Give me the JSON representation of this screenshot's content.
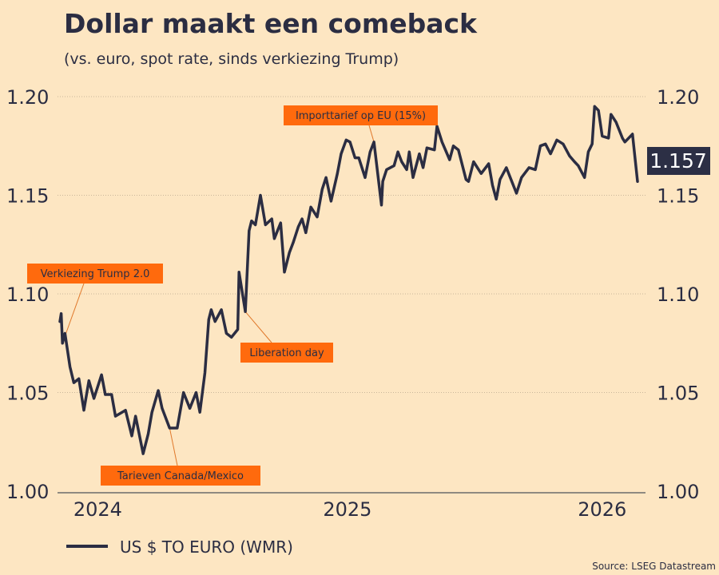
{
  "chart_data": {
    "type": "line",
    "title": "Dollar maakt een comeback",
    "subtitle": "(vs. euro, spot rate, sinds verkiezing Trump)",
    "source": "Source: LSEG Datastream",
    "ylim": [
      1.0,
      1.2
    ],
    "yticks": [
      "1.00",
      "1.05",
      "1.10",
      "1.15",
      "1.20"
    ],
    "xlim": [
      "2024-11-05",
      "2026-02-06"
    ],
    "xticks": [
      {
        "date": "2024-12-05",
        "label": "2024"
      },
      {
        "date": "2025-06-21",
        "label": "2025"
      },
      {
        "date": "2026-01-09",
        "label": "2026"
      }
    ],
    "grid": true,
    "legend_position": "bottom-left",
    "colors": {
      "background": "#fde6c2",
      "line": "#2b2d42",
      "annotation": "#ff6a0d",
      "last_value_box": "#2c2f45"
    },
    "last_value_label": "1.157",
    "series": [
      {
        "name": "US $ TO EURO (WMR)",
        "points": [
          [
            "2024-11-05",
            1.086
          ],
          [
            "2024-11-06",
            1.09
          ],
          [
            "2024-11-07",
            1.075
          ],
          [
            "2024-11-09",
            1.08
          ],
          [
            "2024-11-13",
            1.063
          ],
          [
            "2024-11-16",
            1.055
          ],
          [
            "2024-11-20",
            1.057
          ],
          [
            "2024-11-24",
            1.041
          ],
          [
            "2024-11-28",
            1.056
          ],
          [
            "2024-12-02",
            1.047
          ],
          [
            "2024-12-08",
            1.059
          ],
          [
            "2024-12-11",
            1.049
          ],
          [
            "2024-12-16",
            1.049
          ],
          [
            "2024-12-19",
            1.038
          ],
          [
            "2024-12-27",
            1.041
          ],
          [
            "2025-01-01",
            1.028
          ],
          [
            "2025-01-04",
            1.038
          ],
          [
            "2025-01-10",
            1.019
          ],
          [
            "2025-01-14",
            1.029
          ],
          [
            "2025-01-17",
            1.04
          ],
          [
            "2025-01-22",
            1.051
          ],
          [
            "2025-01-25",
            1.042
          ],
          [
            "2025-01-31",
            1.032
          ],
          [
            "2025-02-06",
            1.032
          ],
          [
            "2025-02-11",
            1.05
          ],
          [
            "2025-02-16",
            1.042
          ],
          [
            "2025-02-21",
            1.05
          ],
          [
            "2025-02-24",
            1.04
          ],
          [
            "2025-02-28",
            1.06
          ],
          [
            "2025-03-03",
            1.087
          ],
          [
            "2025-03-05",
            1.092
          ],
          [
            "2025-03-08",
            1.086
          ],
          [
            "2025-03-13",
            1.092
          ],
          [
            "2025-03-17",
            1.08
          ],
          [
            "2025-03-21",
            1.078
          ],
          [
            "2025-03-26",
            1.082
          ],
          [
            "2025-03-27",
            1.111
          ],
          [
            "2025-04-01",
            1.091
          ],
          [
            "2025-04-04",
            1.132
          ],
          [
            "2025-04-06",
            1.137
          ],
          [
            "2025-04-09",
            1.135
          ],
          [
            "2025-04-13",
            1.15
          ],
          [
            "2025-04-17",
            1.135
          ],
          [
            "2025-04-22",
            1.138
          ],
          [
            "2025-04-24",
            1.128
          ],
          [
            "2025-04-29",
            1.136
          ],
          [
            "2025-05-02",
            1.111
          ],
          [
            "2025-05-06",
            1.121
          ],
          [
            "2025-05-09",
            1.126
          ],
          [
            "2025-05-13",
            1.134
          ],
          [
            "2025-05-16",
            1.138
          ],
          [
            "2025-05-19",
            1.131
          ],
          [
            "2025-05-23",
            1.144
          ],
          [
            "2025-05-28",
            1.139
          ],
          [
            "2025-06-01",
            1.153
          ],
          [
            "2025-06-04",
            1.159
          ],
          [
            "2025-06-08",
            1.147
          ],
          [
            "2025-06-13",
            1.161
          ],
          [
            "2025-06-16",
            1.171
          ],
          [
            "2025-06-20",
            1.178
          ],
          [
            "2025-06-23",
            1.177
          ],
          [
            "2025-06-27",
            1.169
          ],
          [
            "2025-06-30",
            1.169
          ],
          [
            "2025-07-05",
            1.159
          ],
          [
            "2025-07-09",
            1.172
          ],
          [
            "2025-07-12",
            1.177
          ],
          [
            "2025-07-18",
            1.145
          ],
          [
            "2025-07-19",
            1.157
          ],
          [
            "2025-07-22",
            1.163
          ],
          [
            "2025-07-28",
            1.165
          ],
          [
            "2025-07-31",
            1.172
          ],
          [
            "2025-08-03",
            1.167
          ],
          [
            "2025-08-07",
            1.163
          ],
          [
            "2025-08-09",
            1.172
          ],
          [
            "2025-08-12",
            1.159
          ],
          [
            "2025-08-17",
            1.171
          ],
          [
            "2025-08-20",
            1.164
          ],
          [
            "2025-08-23",
            1.174
          ],
          [
            "2025-08-29",
            1.173
          ],
          [
            "2025-08-31",
            1.185
          ],
          [
            "2025-09-04",
            1.177
          ],
          [
            "2025-09-10",
            1.168
          ],
          [
            "2025-09-13",
            1.175
          ],
          [
            "2025-09-17",
            1.173
          ],
          [
            "2025-09-23",
            1.158
          ],
          [
            "2025-09-25",
            1.157
          ],
          [
            "2025-09-29",
            1.167
          ],
          [
            "2025-10-05",
            1.161
          ],
          [
            "2025-10-11",
            1.166
          ],
          [
            "2025-10-14",
            1.155
          ],
          [
            "2025-10-17",
            1.148
          ],
          [
            "2025-10-20",
            1.158
          ],
          [
            "2025-10-25",
            1.164
          ],
          [
            "2025-11-02",
            1.151
          ],
          [
            "2025-11-06",
            1.159
          ],
          [
            "2025-11-12",
            1.164
          ],
          [
            "2025-11-17",
            1.163
          ],
          [
            "2025-11-21",
            1.175
          ],
          [
            "2025-11-25",
            1.176
          ],
          [
            "2025-11-29",
            1.171
          ],
          [
            "2025-12-04",
            1.178
          ],
          [
            "2025-12-09",
            1.176
          ],
          [
            "2025-12-14",
            1.17
          ],
          [
            "2025-12-18",
            1.167
          ],
          [
            "2025-12-21",
            1.165
          ],
          [
            "2025-12-26",
            1.159
          ],
          [
            "2025-12-29",
            1.172
          ],
          [
            "2026-01-01",
            1.176
          ],
          [
            "2026-01-03",
            1.195
          ],
          [
            "2026-01-06",
            1.193
          ],
          [
            "2026-01-09",
            1.18
          ],
          [
            "2026-01-14",
            1.179
          ],
          [
            "2026-01-16",
            1.191
          ],
          [
            "2026-01-20",
            1.187
          ],
          [
            "2026-01-25",
            1.179
          ],
          [
            "2026-01-27",
            1.177
          ],
          [
            "2026-02-02",
            1.181
          ],
          [
            "2026-02-06",
            1.157
          ]
        ]
      }
    ],
    "annotations": [
      {
        "text": "Verkiezing Trump 2.0",
        "date": "2024-11-07"
      },
      {
        "text": "Tarieven Canada/Mexico",
        "date": "2025-01-31"
      },
      {
        "text": "Liberation day",
        "date": "2025-04-01"
      },
      {
        "text": "Importtarief op EU (15%)",
        "date": "2025-07-12"
      }
    ]
  }
}
